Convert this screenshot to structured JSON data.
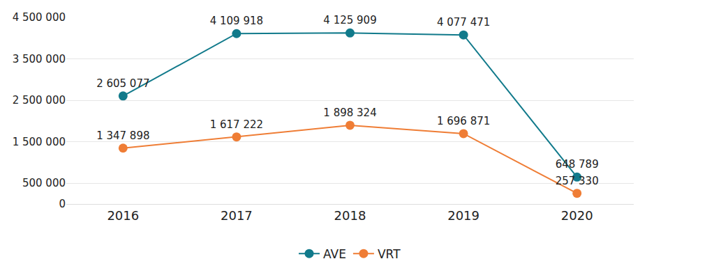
{
  "chart_data": {
    "type": "line",
    "categories": [
      "2016",
      "2017",
      "2018",
      "2019",
      "2020"
    ],
    "series": [
      {
        "name": "AVE",
        "color": "#117a8b",
        "marker": "circle",
        "values": [
          2605077,
          4109918,
          4125909,
          4077471,
          648789
        ],
        "value_labels": [
          "2 605 077",
          "4 109 918",
          "4 125 909",
          "4 077 471",
          "648 789"
        ]
      },
      {
        "name": "VRT",
        "color": "#ef7d35",
        "marker": "circle",
        "values": [
          1347898,
          1617222,
          1898324,
          1696871,
          257330
        ],
        "value_labels": [
          "1 347 898",
          "1 617 222",
          "1 898 324",
          "1 696 871",
          "257 330"
        ]
      }
    ],
    "ylim": [
      0,
      4500000
    ],
    "yticks": [
      0,
      {
        "value": 500000,
        "label": "500 000"
      },
      {
        "value": 1500000,
        "label": "1 500 000"
      },
      {
        "value": 2500000,
        "label": "2 500 000"
      },
      {
        "value": 3500000,
        "label": "3 500 000"
      },
      {
        "value": 4500000,
        "label": "4 500 000"
      }
    ],
    "grid": true,
    "data_labels": true,
    "legend": "bottom"
  }
}
